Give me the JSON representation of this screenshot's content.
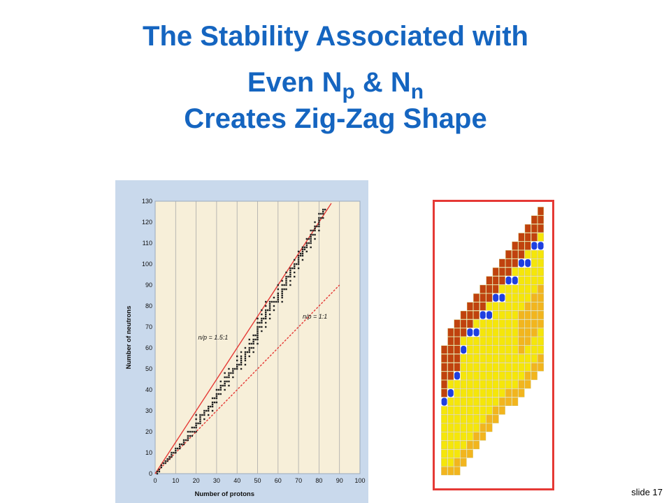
{
  "title": {
    "line1": "The Stability Associated with",
    "line2_prefix": "Even N",
    "line2_sub1": "p",
    "line2_mid": " & N",
    "line2_sub2": "n",
    "line3": "Creates Zig-Zag Shape"
  },
  "slide_label": "slide 17",
  "colors": {
    "title": "#1565c0",
    "chart_background": "#f7efd9",
    "chart_frame": "#c9d9ec",
    "ratio_line": "#e53935",
    "data_points": "#222222",
    "unstable_proton_rich": "#c0420e",
    "even_even_stable": "#1e3fe0",
    "stable_band": "#f5e60a",
    "beta_region": "#f2b51e",
    "panel_border": "#e53935"
  },
  "chart_data": {
    "type": "scatter",
    "xlabel": "Number of protons",
    "ylabel": "Number of neutrons",
    "xlim": [
      0,
      100
    ],
    "ylim": [
      0,
      130
    ],
    "x_ticks": [
      0,
      10,
      20,
      30,
      40,
      50,
      60,
      70,
      80,
      90,
      100
    ],
    "y_ticks": [
      0,
      10,
      20,
      30,
      40,
      50,
      60,
      70,
      80,
      90,
      100,
      110,
      120,
      130
    ],
    "grid": "vertical",
    "lines": [
      {
        "label": "n/p = 1.5:1",
        "style": "solid",
        "points": [
          [
            0,
            0
          ],
          [
            86,
            129
          ]
        ]
      },
      {
        "label": "n/p = 1:1",
        "style": "dashed",
        "points": [
          [
            0,
            0
          ],
          [
            90,
            90
          ]
        ]
      }
    ],
    "stable_nuclei": [
      [
        1,
        0
      ],
      [
        1,
        1
      ],
      [
        2,
        1
      ],
      [
        2,
        2
      ],
      [
        3,
        3
      ],
      [
        3,
        4
      ],
      [
        4,
        5
      ],
      [
        5,
        5
      ],
      [
        5,
        6
      ],
      [
        6,
        6
      ],
      [
        6,
        7
      ],
      [
        7,
        7
      ],
      [
        7,
        8
      ],
      [
        8,
        8
      ],
      [
        8,
        9
      ],
      [
        8,
        10
      ],
      [
        9,
        10
      ],
      [
        10,
        10
      ],
      [
        10,
        11
      ],
      [
        10,
        12
      ],
      [
        11,
        12
      ],
      [
        12,
        12
      ],
      [
        12,
        13
      ],
      [
        12,
        14
      ],
      [
        13,
        14
      ],
      [
        14,
        14
      ],
      [
        14,
        15
      ],
      [
        14,
        16
      ],
      [
        15,
        16
      ],
      [
        16,
        16
      ],
      [
        16,
        17
      ],
      [
        16,
        18
      ],
      [
        16,
        20
      ],
      [
        17,
        18
      ],
      [
        17,
        20
      ],
      [
        18,
        18
      ],
      [
        18,
        20
      ],
      [
        18,
        22
      ],
      [
        19,
        20
      ],
      [
        19,
        22
      ],
      [
        20,
        20
      ],
      [
        20,
        22
      ],
      [
        20,
        23
      ],
      [
        20,
        24
      ],
      [
        20,
        26
      ],
      [
        20,
        28
      ],
      [
        21,
        24
      ],
      [
        22,
        24
      ],
      [
        22,
        25
      ],
      [
        22,
        26
      ],
      [
        22,
        27
      ],
      [
        22,
        28
      ],
      [
        23,
        28
      ],
      [
        24,
        26
      ],
      [
        24,
        28
      ],
      [
        24,
        29
      ],
      [
        24,
        30
      ],
      [
        25,
        30
      ],
      [
        26,
        28
      ],
      [
        26,
        30
      ],
      [
        26,
        31
      ],
      [
        26,
        32
      ],
      [
        27,
        32
      ],
      [
        28,
        30
      ],
      [
        28,
        32
      ],
      [
        28,
        33
      ],
      [
        28,
        34
      ],
      [
        28,
        36
      ],
      [
        29,
        34
      ],
      [
        29,
        36
      ],
      [
        30,
        34
      ],
      [
        30,
        36
      ],
      [
        30,
        37
      ],
      [
        30,
        38
      ],
      [
        30,
        40
      ],
      [
        31,
        38
      ],
      [
        31,
        40
      ],
      [
        32,
        38
      ],
      [
        32,
        40
      ],
      [
        32,
        41
      ],
      [
        32,
        42
      ],
      [
        32,
        44
      ],
      [
        33,
        42
      ],
      [
        34,
        40
      ],
      [
        34,
        42
      ],
      [
        34,
        43
      ],
      [
        34,
        44
      ],
      [
        34,
        46
      ],
      [
        34,
        48
      ],
      [
        35,
        44
      ],
      [
        35,
        46
      ],
      [
        36,
        42
      ],
      [
        36,
        44
      ],
      [
        36,
        46
      ],
      [
        36,
        47
      ],
      [
        36,
        48
      ],
      [
        36,
        50
      ],
      [
        37,
        48
      ],
      [
        38,
        46
      ],
      [
        38,
        48
      ],
      [
        38,
        49
      ],
      [
        38,
        50
      ],
      [
        39,
        50
      ],
      [
        40,
        50
      ],
      [
        40,
        51
      ],
      [
        40,
        52
      ],
      [
        40,
        54
      ],
      [
        40,
        56
      ],
      [
        41,
        52
      ],
      [
        42,
        50
      ],
      [
        42,
        52
      ],
      [
        42,
        53
      ],
      [
        42,
        54
      ],
      [
        42,
        55
      ],
      [
        42,
        56
      ],
      [
        42,
        58
      ],
      [
        44,
        52
      ],
      [
        44,
        54
      ],
      [
        44,
        55
      ],
      [
        44,
        56
      ],
      [
        44,
        57
      ],
      [
        44,
        58
      ],
      [
        44,
        60
      ],
      [
        45,
        58
      ],
      [
        46,
        56
      ],
      [
        46,
        58
      ],
      [
        46,
        59
      ],
      [
        46,
        60
      ],
      [
        46,
        62
      ],
      [
        46,
        64
      ],
      [
        47,
        60
      ],
      [
        47,
        62
      ],
      [
        48,
        58
      ],
      [
        48,
        60
      ],
      [
        48,
        62
      ],
      [
        48,
        63
      ],
      [
        48,
        64
      ],
      [
        48,
        66
      ],
      [
        49,
        64
      ],
      [
        49,
        66
      ],
      [
        50,
        62
      ],
      [
        50,
        64
      ],
      [
        50,
        65
      ],
      [
        50,
        66
      ],
      [
        50,
        67
      ],
      [
        50,
        68
      ],
      [
        50,
        69
      ],
      [
        50,
        70
      ],
      [
        50,
        72
      ],
      [
        50,
        74
      ],
      [
        51,
        70
      ],
      [
        51,
        72
      ],
      [
        52,
        68
      ],
      [
        52,
        70
      ],
      [
        52,
        72
      ],
      [
        52,
        73
      ],
      [
        52,
        74
      ],
      [
        52,
        76
      ],
      [
        52,
        78
      ],
      [
        53,
        74
      ],
      [
        54,
        70
      ],
      [
        54,
        72
      ],
      [
        54,
        74
      ],
      [
        54,
        75
      ],
      [
        54,
        76
      ],
      [
        54,
        77
      ],
      [
        54,
        78
      ],
      [
        54,
        80
      ],
      [
        54,
        82
      ],
      [
        55,
        78
      ],
      [
        56,
        74
      ],
      [
        56,
        76
      ],
      [
        56,
        78
      ],
      [
        56,
        79
      ],
      [
        56,
        80
      ],
      [
        56,
        81
      ],
      [
        56,
        82
      ],
      [
        57,
        82
      ],
      [
        58,
        78
      ],
      [
        58,
        80
      ],
      [
        58,
        82
      ],
      [
        58,
        84
      ],
      [
        59,
        82
      ],
      [
        60,
        82
      ],
      [
        60,
        83
      ],
      [
        60,
        84
      ],
      [
        60,
        85
      ],
      [
        60,
        86
      ],
      [
        60,
        88
      ],
      [
        60,
        90
      ],
      [
        62,
        82
      ],
      [
        62,
        84
      ],
      [
        62,
        85
      ],
      [
        62,
        86
      ],
      [
        62,
        87
      ],
      [
        62,
        88
      ],
      [
        62,
        90
      ],
      [
        62,
        92
      ],
      [
        63,
        88
      ],
      [
        63,
        90
      ],
      [
        64,
        88
      ],
      [
        64,
        90
      ],
      [
        64,
        91
      ],
      [
        64,
        92
      ],
      [
        64,
        93
      ],
      [
        64,
        94
      ],
      [
        64,
        96
      ],
      [
        65,
        94
      ],
      [
        66,
        90
      ],
      [
        66,
        92
      ],
      [
        66,
        94
      ],
      [
        66,
        95
      ],
      [
        66,
        96
      ],
      [
        66,
        97
      ],
      [
        66,
        98
      ],
      [
        67,
        98
      ],
      [
        68,
        94
      ],
      [
        68,
        96
      ],
      [
        68,
        98
      ],
      [
        68,
        99
      ],
      [
        68,
        100
      ],
      [
        68,
        102
      ],
      [
        69,
        100
      ],
      [
        70,
        98
      ],
      [
        70,
        100
      ],
      [
        70,
        101
      ],
      [
        70,
        102
      ],
      [
        70,
        103
      ],
      [
        70,
        104
      ],
      [
        70,
        106
      ],
      [
        71,
        104
      ],
      [
        71,
        105
      ],
      [
        72,
        102
      ],
      [
        72,
        104
      ],
      [
        72,
        105
      ],
      [
        72,
        106
      ],
      [
        72,
        107
      ],
      [
        72,
        108
      ],
      [
        73,
        107
      ],
      [
        73,
        108
      ],
      [
        74,
        106
      ],
      [
        74,
        108
      ],
      [
        74,
        109
      ],
      [
        74,
        110
      ],
      [
        74,
        112
      ],
      [
        75,
        110
      ],
      [
        75,
        112
      ],
      [
        76,
        108
      ],
      [
        76,
        110
      ],
      [
        76,
        111
      ],
      [
        76,
        112
      ],
      [
        76,
        113
      ],
      [
        76,
        114
      ],
      [
        76,
        116
      ],
      [
        77,
        114
      ],
      [
        77,
        116
      ],
      [
        78,
        112
      ],
      [
        78,
        114
      ],
      [
        78,
        116
      ],
      [
        78,
        117
      ],
      [
        78,
        118
      ],
      [
        78,
        120
      ],
      [
        79,
        118
      ],
      [
        80,
        116
      ],
      [
        80,
        118
      ],
      [
        80,
        119
      ],
      [
        80,
        120
      ],
      [
        80,
        121
      ],
      [
        80,
        122
      ],
      [
        80,
        124
      ],
      [
        81,
        122
      ],
      [
        81,
        124
      ],
      [
        82,
        122
      ],
      [
        82,
        124
      ],
      [
        82,
        125
      ],
      [
        82,
        126
      ],
      [
        83,
        126
      ]
    ]
  }
}
